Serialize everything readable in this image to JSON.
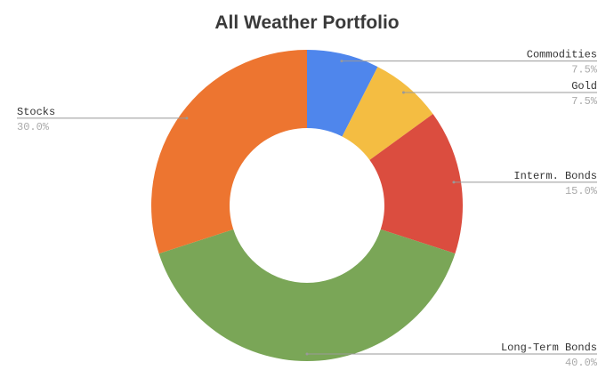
{
  "chart_data": {
    "type": "pie",
    "donut": true,
    "title": "All Weather Portfolio",
    "slices": [
      {
        "label": "Commodities",
        "value": 7.5,
        "display": "7.5%",
        "color": "#4f86ec"
      },
      {
        "label": "Gold",
        "value": 7.5,
        "display": "7.5%",
        "color": "#f4bd42"
      },
      {
        "label": "Interm. Bonds",
        "value": 15.0,
        "display": "15.0%",
        "color": "#db4d3f"
      },
      {
        "label": "Long-Term Bonds",
        "value": 40.0,
        "display": "40.0%",
        "color": "#7aa657"
      },
      {
        "label": "Stocks",
        "value": 30.0,
        "display": "30.0%",
        "color": "#ed7530"
      }
    ],
    "start_angle": "top",
    "direction": "clockwise",
    "legend": "none (callout labels)"
  }
}
